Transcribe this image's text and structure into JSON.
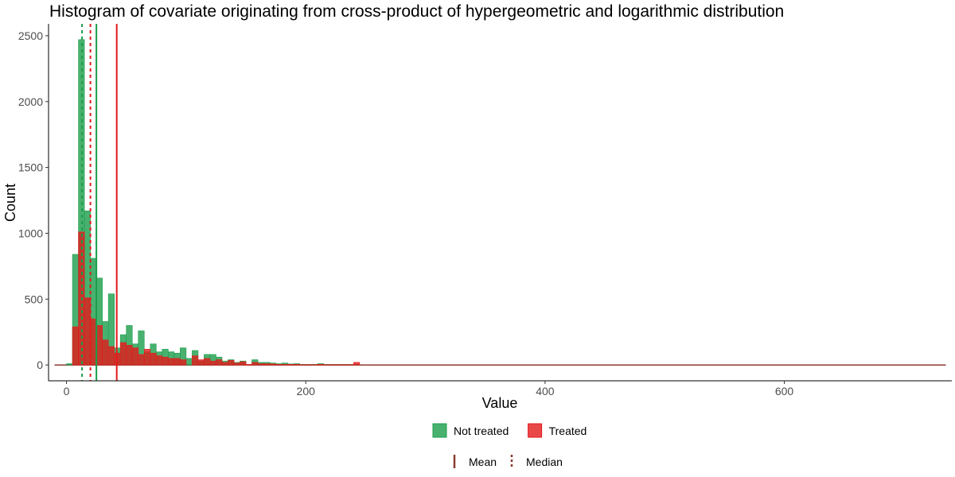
{
  "chart_data": {
    "type": "bar",
    "title": "Histogram of covariate originating from cross-product of hypergeometric and logarithmic distribution",
    "xlabel": "Value",
    "ylabel": "Count",
    "xlim": [
      -15,
      740
    ],
    "ylim": [
      -120,
      2590
    ],
    "x_ticks": [
      0,
      200,
      400,
      600
    ],
    "y_ticks": [
      0,
      500,
      1000,
      1500,
      2000,
      2500
    ],
    "grid": false,
    "bin_width": 5,
    "legend_position": "bottom",
    "series": [
      {
        "name": "Not treated",
        "color": "#1b9e4b",
        "bin_starts": [
          -5,
          0,
          5,
          10,
          15,
          20,
          25,
          30,
          35,
          40,
          45,
          50,
          55,
          60,
          65,
          70,
          75,
          80,
          85,
          90,
          95,
          100,
          105,
          110,
          115,
          120,
          125,
          130,
          135,
          140,
          145,
          150,
          155,
          160,
          165,
          170,
          175,
          180,
          185,
          190,
          195,
          200,
          205,
          210,
          215,
          220,
          225,
          230,
          235,
          240
        ],
        "counts": [
          0,
          10,
          840,
          2470,
          1170,
          810,
          660,
          330,
          540,
          130,
          230,
          300,
          160,
          260,
          100,
          160,
          100,
          120,
          100,
          90,
          130,
          50,
          110,
          30,
          80,
          80,
          60,
          30,
          40,
          20,
          30,
          5,
          40,
          20,
          20,
          15,
          10,
          15,
          8,
          10,
          5,
          5,
          5,
          10,
          5,
          5,
          5,
          5,
          5,
          5
        ]
      },
      {
        "name": "Treated",
        "color": "#e41a1c",
        "bin_starts": [
          0,
          5,
          10,
          15,
          20,
          25,
          30,
          35,
          40,
          45,
          50,
          55,
          60,
          65,
          70,
          75,
          80,
          85,
          90,
          95,
          100,
          105,
          110,
          115,
          120,
          125,
          130,
          135,
          140,
          145,
          150,
          155,
          160,
          165,
          170,
          175,
          180,
          185,
          190,
          195,
          200,
          205,
          210,
          215,
          220,
          225,
          230,
          235,
          240
        ],
        "counts": [
          0,
          290,
          1010,
          510,
          350,
          300,
          190,
          140,
          90,
          170,
          150,
          130,
          80,
          120,
          90,
          70,
          60,
          50,
          50,
          40,
          0,
          70,
          40,
          50,
          30,
          40,
          20,
          35,
          15,
          25,
          5,
          20,
          10,
          10,
          8,
          5,
          5,
          5,
          5,
          3,
          3,
          3,
          5,
          3,
          3,
          3,
          3,
          3,
          20
        ]
      }
    ],
    "reference_lines": [
      {
        "group": "Not treated",
        "stat": "Mean",
        "value": 25,
        "style": "solid"
      },
      {
        "group": "Treated",
        "stat": "Mean",
        "value": 42,
        "style": "solid"
      },
      {
        "group": "Not treated",
        "stat": "Median",
        "value": 13,
        "style": "dashed"
      },
      {
        "group": "Treated",
        "stat": "Median",
        "value": 20,
        "style": "dashed"
      }
    ],
    "legend_fill": [
      {
        "label": "Not treated",
        "color": "#1b9e4b"
      },
      {
        "label": "Treated",
        "color": "#e41a1c"
      }
    ],
    "legend_linetype": [
      {
        "label": "Mean",
        "style": "solid",
        "color": "#8b3a2f"
      },
      {
        "label": "Median",
        "style": "dashed",
        "color": "#8b3a2f"
      }
    ]
  }
}
